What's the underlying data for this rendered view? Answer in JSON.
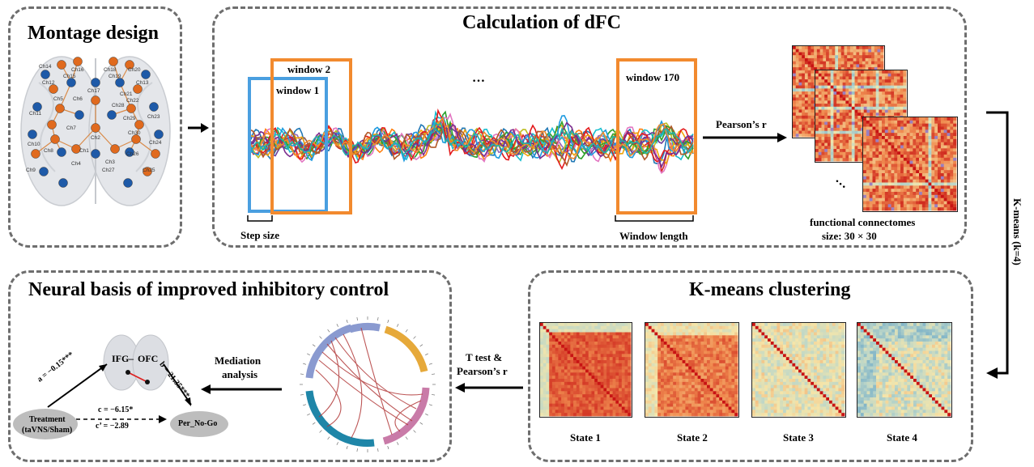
{
  "panels": {
    "montage": {
      "title": "Montage design"
    },
    "dfc": {
      "title": "Calculation of dFC",
      "window1": "window 1",
      "window2": "window 2",
      "window170": "window 170",
      "ellipsis": "…",
      "step_size": "Step size",
      "window_length": "Window length",
      "pearson": "Pearson’s r"
    },
    "connectomes": {
      "caption1": "functional connectomes",
      "caption2": "size: 30 × 30",
      "ellipsis": "…"
    },
    "kmeans_side": {
      "label": "K-means (k=4)"
    },
    "clustering": {
      "title": "K-means clustering",
      "states": [
        "State 1",
        "State 2",
        "State 3",
        "State 4"
      ]
    },
    "arrow_ttest": {
      "line1": "T test &",
      "line2": "Pearson’s r"
    },
    "neural": {
      "title": "Neural basis of improved inhibitory control",
      "mediation1": "Mediation",
      "mediation2": "analysis",
      "ifg": "IFG",
      "ofc": "OFC",
      "dash": "–",
      "path_a": "a = −0.15***",
      "path_b": "b = 21.35***",
      "path_c": "c = −6.15*",
      "path_c_prime": "c’ = −2.89",
      "treatment1": "Treatment",
      "treatment2": "(taVNS/Sham)",
      "outcome": "Per_No-Go"
    }
  },
  "channels": [
    "Ch14",
    "Ch15",
    "Ch16",
    "Ch18",
    "Ch19",
    "Ch20",
    "Ch12",
    "Ch13",
    "Ch17",
    "Ch21",
    "Ch22",
    "Ch5",
    "Ch6",
    "Ch28",
    "Ch29",
    "Ch11",
    "Ch23",
    "Ch7",
    "Ch2",
    "Ch30",
    "Ch10",
    "Ch24",
    "Ch8",
    "Ch1",
    "Ch3",
    "Ch26",
    "Ch9",
    "Ch25",
    "Ch4",
    "Ch27"
  ],
  "colors": {
    "orange": "#f28a2e",
    "blue": "#4a9fe0",
    "node_orange": "#e06a1e",
    "node_blue": "#1e5aa8"
  }
}
